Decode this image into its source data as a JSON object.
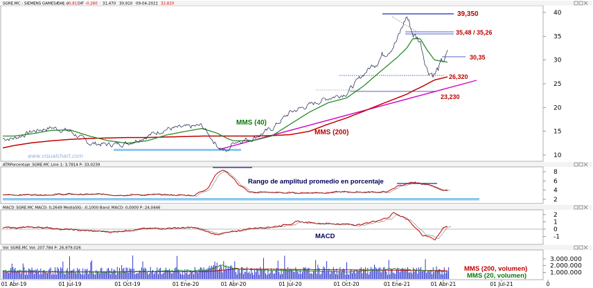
{
  "colors": {
    "price": "#1a1a1a",
    "mms40": "#2a8a2a",
    "mms200": "#c00000",
    "trend": "#d400c8",
    "support": "#8cc8f0",
    "level": "#1a2bb0",
    "annotation_red": "#c00000",
    "annotation_green": "#0a7a0a",
    "annotation_blue": "#00005a",
    "volume": "#1a22c8",
    "watermark": "#8ab0e0"
  },
  "price_panel": {
    "header_prefix": "SGRE.MC - SIEMENS GAMESA - 1 d",
    "header_vals": [
      "DH",
      "-0,81",
      "DIF",
      "-0,260",
      "31,470",
      "30,910",
      "09-04-2021",
      "32,820"
    ],
    "watermark": "www.visualchart.com",
    "yticks": [
      "40",
      "35",
      "30",
      "25",
      "20",
      "15",
      "10"
    ],
    "labels": {
      "mms40": "MMS (40)",
      "mms200": "MMS (200)"
    },
    "levels": [
      {
        "label": "39,350",
        "value": 39.35
      },
      {
        "label": "35,48 / 35,26",
        "value": 35.4
      },
      {
        "label": "30,35",
        "value": 30.35
      },
      {
        "label": "26,320",
        "value": 26.32
      },
      {
        "label": "23,230",
        "value": 23.23
      }
    ]
  },
  "atr_panel": {
    "header": "ATRPorcentaje_SGRE.MC Line 1: 3,7814 P: 33,0239",
    "annotation": "Rango de amplitud promedio en porcentaje",
    "yticks": [
      "8",
      "6",
      "4",
      "2"
    ]
  },
  "macd_panel": {
    "header": "MACD_SGRE.MC MACD: 0,2649 MediaSIG: -0,1000 Band_MACD: 0,0000 P: 24,0446",
    "annotation": "MACD",
    "yticks": [
      "2",
      "1",
      "0",
      "-1"
    ]
  },
  "vol_panel": {
    "header": "Vol_SGRE.MC Vol: 207.784 P: 26,979,026",
    "yticks": [
      "3.000.000",
      "2.000.000",
      "1.000.000"
    ],
    "labels": {
      "mms200": "MMS (200, volumen)",
      "mms20": "MMS (20, volumen)"
    }
  },
  "xaxis": {
    "labels": [
      "01 Abr-19",
      "01 Jul-19",
      "01 Oct-19",
      "01 Ene-20",
      "01 Abr-20",
      "01 Jul-20",
      "01 Oct-20",
      "01 Ene-21",
      "01 Abr-21",
      "01 Jul-21",
      "0"
    ]
  },
  "chart_data": {
    "type": "line",
    "title": "SGRE.MC - SIEMENS GAMESA - 1 d",
    "x": [
      "2019-04-01",
      "2019-05-01",
      "2019-06-01",
      "2019-07-01",
      "2019-08-01",
      "2019-09-01",
      "2019-10-01",
      "2019-11-01",
      "2019-12-01",
      "2020-01-01",
      "2020-02-01",
      "2020-03-01",
      "2020-03-20",
      "2020-04-01",
      "2020-05-01",
      "2020-06-01",
      "2020-07-01",
      "2020-08-01",
      "2020-09-01",
      "2020-10-01",
      "2020-11-01",
      "2020-12-01",
      "2021-01-01",
      "2021-01-20",
      "2021-02-01",
      "2021-02-15",
      "2021-03-01",
      "2021-03-15",
      "2021-04-09"
    ],
    "series": [
      {
        "name": "SGRE.MC",
        "values": [
          13.5,
          15.0,
          15.8,
          15.0,
          12.5,
          12.2,
          12.5,
          14.0,
          15.5,
          15.8,
          16.2,
          12.0,
          10.6,
          12.8,
          13.5,
          15.5,
          19.0,
          20.5,
          22.0,
          23.0,
          27.0,
          30.5,
          34.0,
          39.3,
          35.5,
          34.0,
          28.0,
          27.0,
          31.5
        ]
      },
      {
        "name": "MMS (40)",
        "values": [
          14.0,
          14.5,
          15.2,
          15.3,
          14.0,
          13.0,
          12.5,
          13.0,
          14.2,
          15.0,
          15.6,
          14.6,
          13.5,
          13.0,
          13.0,
          14.0,
          16.5,
          19.0,
          21.0,
          22.0,
          24.5,
          27.5,
          30.5,
          32.5,
          34.5,
          34.5,
          32.0,
          30.0,
          29.5
        ]
      },
      {
        "name": "MMS (200)",
        "values": [
          12.0,
          12.6,
          13.0,
          13.3,
          13.5,
          13.6,
          13.7,
          13.7,
          13.8,
          13.9,
          14.0,
          14.0,
          14.0,
          14.0,
          14.0,
          14.1,
          14.3,
          15.0,
          16.5,
          17.8,
          19.2,
          20.6,
          22.0,
          22.8,
          23.5,
          24.2,
          25.0,
          25.8,
          26.5
        ]
      }
    ],
    "ylim": [
      9,
      40.5
    ],
    "grid": false,
    "atr_percent_last": 3.7814,
    "macd_last": 0.2649,
    "macd_signal_last": -0.1,
    "volume_last": 207784
  }
}
